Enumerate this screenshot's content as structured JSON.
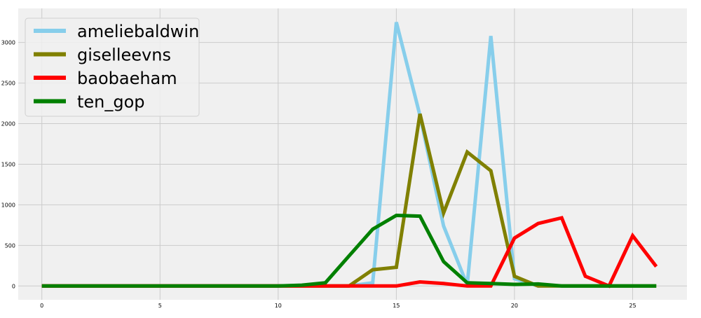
{
  "chart_data": {
    "type": "line",
    "x_ticks": [
      0,
      5,
      10,
      15,
      20,
      25
    ],
    "y_ticks": [
      0,
      500,
      1000,
      1500,
      2000,
      2500,
      3000
    ],
    "xlim": [
      -1,
      27.3
    ],
    "ylim": [
      -170,
      3420
    ],
    "grid": true,
    "legend_position": "top-left",
    "x": [
      0,
      1,
      2,
      3,
      4,
      5,
      6,
      7,
      8,
      9,
      10,
      11,
      12,
      13,
      14,
      15,
      16,
      17,
      18,
      19,
      20,
      21,
      22,
      23,
      24,
      25,
      26
    ],
    "series": [
      {
        "name": "ameliebaldwin",
        "color": "#87ceeb",
        "values": [
          0,
          0,
          0,
          0,
          0,
          0,
          0,
          0,
          0,
          0,
          0,
          0,
          0,
          0,
          40,
          3250,
          2100,
          740,
          10,
          3080,
          90,
          0,
          0,
          0,
          0,
          0,
          0
        ]
      },
      {
        "name": "giselleevns",
        "color": "#808000",
        "values": [
          0,
          0,
          0,
          0,
          0,
          0,
          0,
          0,
          0,
          0,
          0,
          0,
          0,
          0,
          200,
          230,
          2120,
          900,
          1650,
          1420,
          120,
          0,
          0,
          0,
          0,
          0,
          0
        ]
      },
      {
        "name": "baobaeham",
        "color": "#ff0000",
        "values": [
          0,
          0,
          0,
          0,
          0,
          0,
          0,
          0,
          0,
          0,
          0,
          0,
          0,
          0,
          0,
          0,
          50,
          30,
          0,
          0,
          590,
          770,
          840,
          120,
          0,
          620,
          240
        ]
      },
      {
        "name": "ten_gop",
        "color": "#008000",
        "values": [
          0,
          0,
          0,
          0,
          0,
          0,
          0,
          0,
          0,
          0,
          0,
          10,
          40,
          370,
          700,
          870,
          860,
          300,
          40,
          30,
          20,
          25,
          0,
          0,
          0,
          0,
          0
        ]
      }
    ]
  }
}
